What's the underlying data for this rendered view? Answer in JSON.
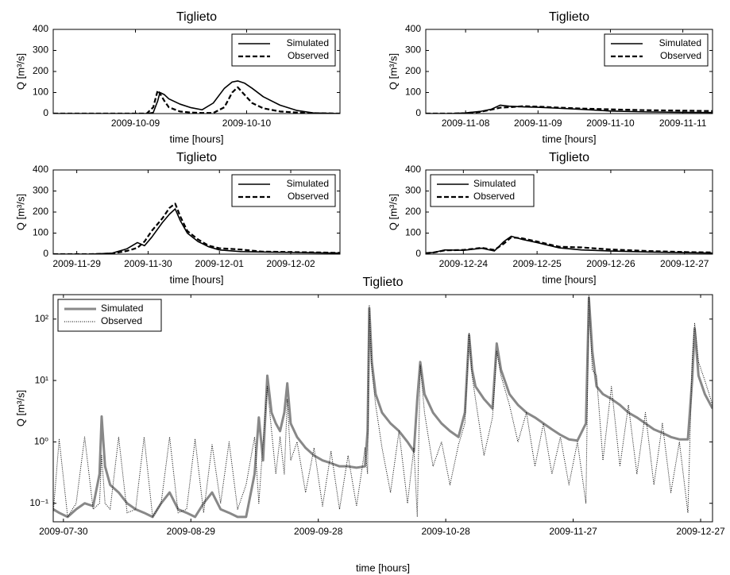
{
  "chart_data": [
    {
      "type": "line",
      "title": "Tiglieto",
      "xlabel": "time [hours]",
      "ylabel": "Q [m³/s]",
      "xlim": [
        281.26,
        283.84
      ],
      "ylim": [
        0,
        400
      ],
      "xticks": [
        {
          "value": 282,
          "label": "2009-10-09"
        },
        {
          "value": 283,
          "label": "2009-10-10"
        }
      ],
      "yticks": [
        0,
        100,
        200,
        300,
        400
      ],
      "legend": "upper right",
      "x": [
        281.26,
        282.1,
        282.16,
        282.2,
        282.22,
        282.26,
        282.3,
        282.4,
        282.5,
        282.6,
        282.7,
        282.8,
        282.87,
        282.92,
        282.98,
        283.05,
        283.15,
        283.3,
        283.45,
        283.6,
        283.84
      ],
      "series": [
        {
          "name": "Simulated",
          "color": "#000000",
          "dash": "solid",
          "width": 1.6,
          "values": [
            0,
            0,
            5,
            60,
            100,
            90,
            70,
            45,
            28,
            18,
            50,
            120,
            150,
            155,
            145,
            120,
            80,
            40,
            15,
            3,
            0
          ]
        },
        {
          "name": "Observed",
          "color": "#000000",
          "dash": "dashed",
          "width": 2.2,
          "values": [
            0,
            0,
            30,
            110,
            95,
            60,
            30,
            10,
            5,
            3,
            3,
            30,
            100,
            125,
            90,
            50,
            25,
            10,
            5,
            2,
            0
          ]
        }
      ]
    },
    {
      "type": "line",
      "title": "Tiglieto",
      "xlabel": "time [hours]",
      "ylabel": "Q [m³/s]",
      "xlim": [
        311.45,
        315.41
      ],
      "ylim": [
        0,
        400
      ],
      "xticks": [
        {
          "value": 312,
          "label": "2009-11-08"
        },
        {
          "value": 313,
          "label": "2009-11-09"
        },
        {
          "value": 314,
          "label": "2009-11-10"
        },
        {
          "value": 315,
          "label": "2009-11-11"
        }
      ],
      "yticks": [
        0,
        100,
        200,
        300,
        400
      ],
      "legend": "upper right",
      "x": [
        311.45,
        311.8,
        312.0,
        312.2,
        312.35,
        312.48,
        312.6,
        312.8,
        313.0,
        313.3,
        313.6,
        314.0,
        314.5,
        315.0,
        315.41
      ],
      "series": [
        {
          "name": "Simulated",
          "color": "#000000",
          "dash": "solid",
          "width": 1.6,
          "values": [
            0,
            0,
            3,
            10,
            20,
            40,
            35,
            32,
            30,
            25,
            20,
            12,
            8,
            6,
            5
          ]
        },
        {
          "name": "Observed",
          "color": "#000000",
          "dash": "dashed",
          "width": 2.2,
          "values": [
            0,
            0,
            2,
            8,
            18,
            28,
            30,
            35,
            33,
            28,
            24,
            20,
            16,
            14,
            12
          ]
        }
      ]
    },
    {
      "type": "line",
      "title": "Tiglieto",
      "xlabel": "time [hours]",
      "ylabel": "Q [m³/s]",
      "xlim": [
        332.67,
        336.69
      ],
      "ylim": [
        0,
        400
      ],
      "xticks": [
        {
          "value": 333,
          "label": "2009-11-29"
        },
        {
          "value": 334,
          "label": "2009-11-30"
        },
        {
          "value": 335,
          "label": "2009-12-01"
        },
        {
          "value": 336,
          "label": "2009-12-02"
        }
      ],
      "yticks": [
        0,
        100,
        200,
        300,
        400
      ],
      "legend": "upper right",
      "x": [
        332.67,
        333.2,
        333.5,
        333.7,
        333.85,
        333.95,
        334.05,
        334.2,
        334.3,
        334.38,
        334.45,
        334.55,
        334.7,
        334.85,
        335.0,
        335.3,
        335.6,
        336.0,
        336.4,
        336.69
      ],
      "series": [
        {
          "name": "Simulated",
          "color": "#000000",
          "dash": "solid",
          "width": 1.6,
          "values": [
            0,
            0,
            5,
            25,
            55,
            40,
            80,
            150,
            190,
            215,
            160,
            100,
            60,
            35,
            20,
            12,
            10,
            8,
            6,
            5
          ]
        },
        {
          "name": "Observed",
          "color": "#000000",
          "dash": "dashed",
          "width": 2.2,
          "values": [
            0,
            0,
            3,
            15,
            30,
            60,
            110,
            170,
            220,
            240,
            180,
            110,
            70,
            40,
            28,
            22,
            12,
            10,
            8,
            6
          ]
        }
      ]
    },
    {
      "type": "line",
      "title": "Tiglieto",
      "xlabel": "time [hours]",
      "ylabel": "Q [m³/s]",
      "xlim": [
        357.49,
        361.38
      ],
      "ylim": [
        0,
        400
      ],
      "xticks": [
        {
          "value": 358,
          "label": "2009-12-24"
        },
        {
          "value": 359,
          "label": "2009-12-25"
        },
        {
          "value": 360,
          "label": "2009-12-26"
        },
        {
          "value": 361,
          "label": "2009-12-27"
        }
      ],
      "yticks": [
        0,
        100,
        200,
        300,
        400
      ],
      "legend": "upper left",
      "x": [
        357.49,
        357.6,
        357.75,
        358.0,
        358.25,
        358.42,
        358.55,
        358.65,
        358.8,
        359.0,
        359.3,
        359.6,
        360.0,
        360.5,
        361.0,
        361.38
      ],
      "series": [
        {
          "name": "Simulated",
          "color": "#000000",
          "dash": "solid",
          "width": 1.6,
          "values": [
            5,
            8,
            20,
            18,
            28,
            15,
            60,
            85,
            70,
            55,
            30,
            20,
            15,
            10,
            7,
            5
          ]
        },
        {
          "name": "Observed",
          "color": "#000000",
          "dash": "dashed",
          "width": 2.2,
          "values": [
            5,
            8,
            18,
            20,
            30,
            20,
            50,
            80,
            75,
            60,
            35,
            32,
            22,
            15,
            10,
            8
          ]
        }
      ]
    },
    {
      "type": "line",
      "title": "Tiglieto",
      "xlabel": "time [hours]",
      "ylabel": "Q [m³/s]",
      "log_scale": true,
      "xlim": [
        208.6,
        363.8
      ],
      "ylim": [
        0.05,
        250
      ],
      "xticks": [
        {
          "value": 211,
          "label": "2009-07-30"
        },
        {
          "value": 241,
          "label": "2009-08-29"
        },
        {
          "value": 271,
          "label": "2009-09-28"
        },
        {
          "value": 301,
          "label": "2009-10-28"
        },
        {
          "value": 331,
          "label": "2009-11-27"
        },
        {
          "value": 361,
          "label": "2009-12-27"
        }
      ],
      "yticks": [
        {
          "value": 0.1,
          "label": "10⁻¹"
        },
        {
          "value": 1,
          "label": "10⁰"
        },
        {
          "value": 10,
          "label": "10¹"
        },
        {
          "value": 100,
          "label": "10²"
        }
      ],
      "legend": "upper left",
      "x": [
        208.6,
        210,
        212,
        214,
        216,
        218,
        219.5,
        220,
        220.8,
        222,
        224,
        226,
        228,
        230,
        232,
        234,
        236,
        238,
        240,
        242,
        244,
        246,
        248,
        250,
        252,
        254,
        256,
        257,
        258,
        259,
        260,
        261,
        262,
        263,
        263.7,
        264.5,
        266,
        268,
        270,
        272,
        274,
        276,
        278,
        280,
        282,
        282.6,
        283,
        283.6,
        284.5,
        286,
        288,
        290,
        292,
        293.5,
        294.3,
        295,
        296,
        298,
        300,
        302,
        304,
        305.5,
        306.5,
        307.2,
        308,
        310,
        312,
        313,
        314,
        316,
        318,
        320,
        322,
        324,
        326,
        328,
        330,
        332,
        334,
        334.7,
        335.5,
        336.5,
        338,
        340,
        342,
        344,
        346,
        348,
        350,
        352,
        354,
        356,
        358,
        359,
        359.6,
        360.5,
        362,
        363.8
      ],
      "series": [
        {
          "name": "Simulated",
          "color": "#888888",
          "dash": "solid",
          "width": 3,
          "values": [
            0.08,
            0.07,
            0.06,
            0.08,
            0.1,
            0.09,
            0.3,
            2.6,
            0.4,
            0.2,
            0.15,
            0.1,
            0.08,
            0.07,
            0.06,
            0.1,
            0.15,
            0.08,
            0.07,
            0.06,
            0.1,
            0.15,
            0.08,
            0.07,
            0.06,
            0.06,
            0.3,
            2.5,
            0.5,
            12,
            3,
            2,
            1.5,
            3,
            9,
            2,
            1.2,
            0.8,
            0.6,
            0.5,
            0.45,
            0.4,
            0.4,
            0.38,
            0.4,
            1.5,
            150,
            20,
            6,
            3,
            2,
            1.5,
            1.0,
            0.7,
            5,
            20,
            6,
            3,
            2,
            1.5,
            1.2,
            3,
            55,
            15,
            8,
            5,
            3.5,
            40,
            15,
            6,
            4,
            3,
            2.5,
            2,
            1.6,
            1.3,
            1.1,
            1.05,
            2,
            220,
            30,
            8,
            6,
            5,
            4,
            3,
            2.5,
            2,
            1.6,
            1.4,
            1.2,
            1.1,
            1.1,
            10,
            70,
            12,
            6,
            3.5
          ]
        },
        {
          "name": "Observed",
          "color": "#000000",
          "dash": "dotted",
          "width": 1,
          "values": [
            0.07,
            1.1,
            0.06,
            0.1,
            1.2,
            0.08,
            0.1,
            0.6,
            0.1,
            0.08,
            1.2,
            0.07,
            0.08,
            1.2,
            0.06,
            0.1,
            1.2,
            0.07,
            0.08,
            1.1,
            0.07,
            0.9,
            0.1,
            1.0,
            0.08,
            0.2,
            1.2,
            0.1,
            1.0,
            8,
            1.5,
            0.3,
            1.2,
            0.3,
            5,
            0.5,
            1.0,
            0.15,
            0.8,
            0.09,
            0.7,
            0.08,
            0.6,
            0.09,
            0.8,
            0.3,
            170,
            15,
            4,
            0.8,
            0.15,
            1.5,
            0.1,
            0.8,
            0.06,
            18,
            3,
            0.4,
            1.0,
            0.2,
            0.9,
            2,
            60,
            12,
            5,
            0.6,
            2.5,
            30,
            12,
            4,
            1.0,
            3,
            0.4,
            2,
            0.3,
            1.2,
            0.2,
            1.0,
            0.1,
            240,
            15,
            12,
            0.5,
            8,
            0.4,
            4,
            0.3,
            3,
            0.2,
            2,
            0.15,
            1.0,
            0.07,
            20,
            85,
            20,
            10,
            4
          ]
        }
      ]
    }
  ]
}
